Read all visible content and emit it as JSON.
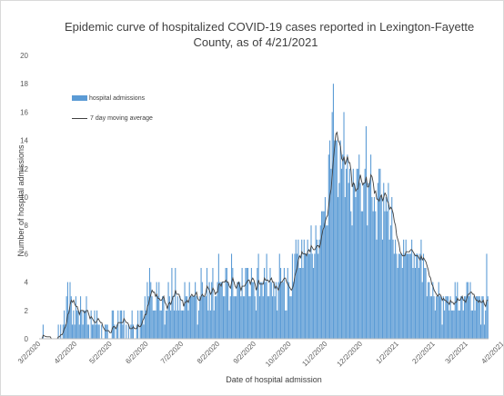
{
  "chart_data": {
    "type": "bar",
    "title_lines": [
      "Epidemic curve of hospitalized COVID-19 cases reported in Lexington-Fayette",
      "County, as of 4/21/2021"
    ],
    "xlabel": "Date of hospital admission",
    "ylabel": "Number of hospital admissions",
    "ylim": [
      0,
      20
    ],
    "yticks": [
      0,
      2,
      4,
      6,
      8,
      10,
      12,
      14,
      16,
      18,
      20
    ],
    "x_start": "3/1/2020",
    "x_end": "4/21/2021",
    "xtick_labels": [
      "3/2/2020",
      "4/2/2020",
      "5/2/2020",
      "6/2/2020",
      "7/2/2020",
      "8/2/2020",
      "9/2/2020",
      "10/2/2020",
      "11/2/2020",
      "12/2/2020",
      "1/2/2021",
      "2/2/2021",
      "3/2/2021",
      "4/2/2021"
    ],
    "grid": false,
    "legend_position": "top-left",
    "series": [
      {
        "name": "hospital admissions",
        "type": "bar",
        "color": "#5b9bd5",
        "values": [
          0,
          0,
          0,
          1,
          0,
          0,
          0,
          0,
          0,
          0,
          0,
          0,
          0,
          0,
          0,
          0,
          1,
          0,
          1,
          0,
          1,
          2,
          1,
          3,
          4,
          2,
          4,
          3,
          1,
          2,
          1,
          3,
          2,
          2,
          1,
          3,
          2,
          1,
          2,
          2,
          3,
          1,
          1,
          0,
          2,
          1,
          1,
          2,
          1,
          2,
          1,
          1,
          0,
          1,
          0,
          0,
          1,
          1,
          1,
          0,
          0,
          0,
          2,
          2,
          1,
          0,
          1,
          2,
          0,
          2,
          2,
          1,
          2,
          0,
          1,
          0,
          1,
          0,
          1,
          2,
          1,
          0,
          0,
          1,
          2,
          0,
          2,
          2,
          2,
          1,
          3,
          2,
          4,
          3,
          5,
          4,
          3,
          2,
          2,
          2,
          4,
          3,
          4,
          2,
          2,
          3,
          3,
          1,
          2,
          2,
          4,
          3,
          2,
          5,
          3,
          2,
          5,
          2,
          3,
          2,
          3,
          2,
          2,
          2,
          4,
          3,
          3,
          2,
          4,
          3,
          3,
          3,
          3,
          4,
          3,
          1,
          2,
          3,
          5,
          4,
          3,
          3,
          3,
          5,
          2,
          4,
          2,
          4,
          5,
          2,
          3,
          3,
          4,
          6,
          4,
          4,
          4,
          3,
          3,
          5,
          5,
          4,
          2,
          3,
          6,
          5,
          3,
          3,
          3,
          4,
          4,
          4,
          3,
          5,
          3,
          3,
          5,
          5,
          5,
          3,
          3,
          5,
          4,
          4,
          3,
          2,
          5,
          6,
          3,
          4,
          4,
          3,
          5,
          4,
          6,
          3,
          3,
          5,
          4,
          3,
          4,
          3,
          4,
          2,
          4,
          6,
          5,
          4,
          4,
          5,
          2,
          2,
          5,
          4,
          3,
          3,
          6,
          4,
          6,
          7,
          6,
          7,
          5,
          5,
          7,
          5,
          7,
          6,
          6,
          7,
          6,
          6,
          8,
          6,
          5,
          6,
          8,
          7,
          6,
          7,
          8,
          9,
          9,
          9,
          10,
          8,
          8,
          13,
          14,
          12,
          16,
          18,
          14,
          14,
          14,
          10,
          11,
          14,
          12,
          13,
          16,
          10,
          12,
          13,
          11,
          12,
          9,
          8,
          12,
          11,
          10,
          12,
          12,
          13,
          11,
          9,
          9,
          11,
          12,
          15,
          8,
          11,
          11,
          13,
          10,
          9,
          10,
          9,
          7,
          11,
          12,
          12,
          10,
          7,
          11,
          9,
          10,
          9,
          11,
          7,
          8,
          10,
          7,
          6,
          7,
          6,
          5,
          6,
          6,
          6,
          5,
          7,
          6,
          7,
          6,
          6,
          6,
          6,
          7,
          5,
          6,
          5,
          6,
          6,
          5,
          6,
          7,
          4,
          6,
          5,
          5,
          3,
          4,
          4,
          3,
          3,
          4,
          3,
          2,
          3,
          3,
          4,
          3,
          3,
          1,
          3,
          2,
          3,
          3,
          3,
          2,
          3,
          2,
          2,
          2,
          4,
          3,
          4,
          2,
          2,
          3,
          3,
          2,
          3,
          3,
          4,
          4,
          3,
          4,
          2,
          2,
          3,
          2,
          3,
          3,
          3,
          3,
          1,
          3,
          3,
          1,
          2,
          6,
          3
        ]
      },
      {
        "name": "7 day moving average",
        "type": "line",
        "color": "#404040"
      }
    ]
  }
}
